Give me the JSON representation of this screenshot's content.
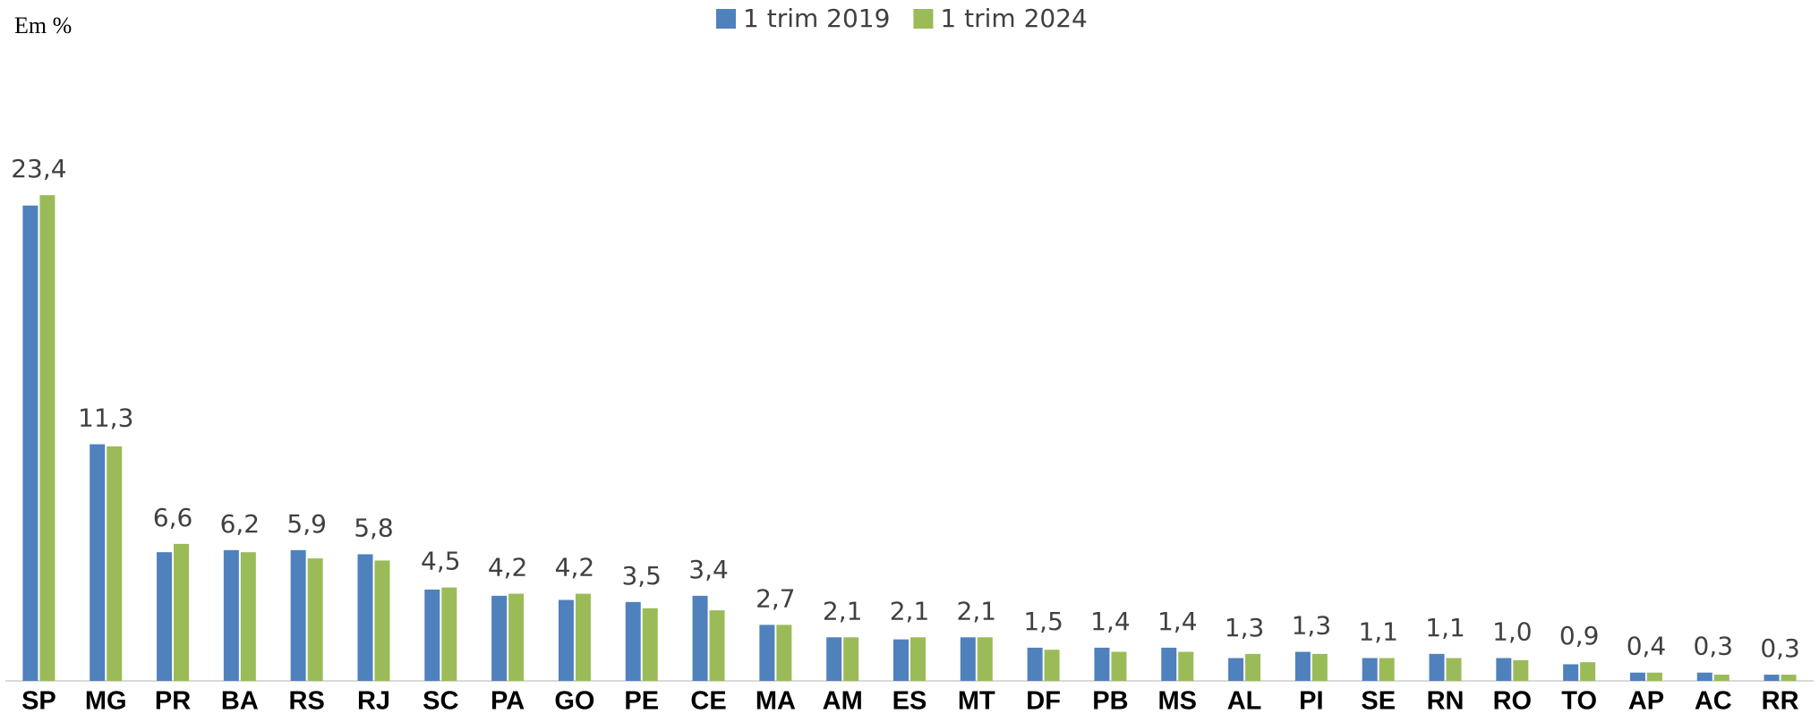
{
  "chart_data": {
    "type": "bar",
    "subtitle": "Em %",
    "categories": [
      "SP",
      "MG",
      "PR",
      "BA",
      "RS",
      "RJ",
      "SC",
      "PA",
      "GO",
      "PE",
      "CE",
      "MA",
      "AM",
      "ES",
      "MT",
      "DF",
      "PB",
      "MS",
      "AL",
      "PI",
      "SE",
      "RN",
      "RO",
      "TO",
      "AP",
      "AC",
      "RR"
    ],
    "series": [
      {
        "name": "1 trim 2019",
        "color": "#4f81bd",
        "values": [
          22.9,
          11.4,
          6.2,
          6.3,
          6.3,
          6.1,
          4.4,
          4.1,
          3.9,
          3.8,
          4.1,
          2.7,
          2.1,
          2.0,
          2.1,
          1.6,
          1.6,
          1.6,
          1.1,
          1.4,
          1.1,
          1.3,
          1.1,
          0.8,
          0.4,
          0.4,
          0.3
        ]
      },
      {
        "name": "1 trim 2024",
        "color": "#9bbb59",
        "values": [
          23.4,
          11.3,
          6.6,
          6.2,
          5.9,
          5.8,
          4.5,
          4.2,
          4.2,
          3.5,
          3.4,
          2.7,
          2.1,
          2.1,
          2.1,
          1.5,
          1.4,
          1.4,
          1.3,
          1.3,
          1.1,
          1.1,
          1.0,
          0.9,
          0.4,
          0.3,
          0.3
        ],
        "value_labels": [
          "23,4",
          "11,3",
          "6,6",
          "6,2",
          "5,9",
          "5,8",
          "4,5",
          "4,2",
          "4,2",
          "3,5",
          "3,4",
          "2,7",
          "2,1",
          "2,1",
          "2,1",
          "1,5",
          "1,4",
          "1,4",
          "1,3",
          "1,3",
          "1,1",
          "1,1",
          "1,0",
          "0,9",
          "0,4",
          "0,3",
          "0,3"
        ]
      }
    ],
    "ylim": [
      0,
      30
    ],
    "legend": "top"
  }
}
